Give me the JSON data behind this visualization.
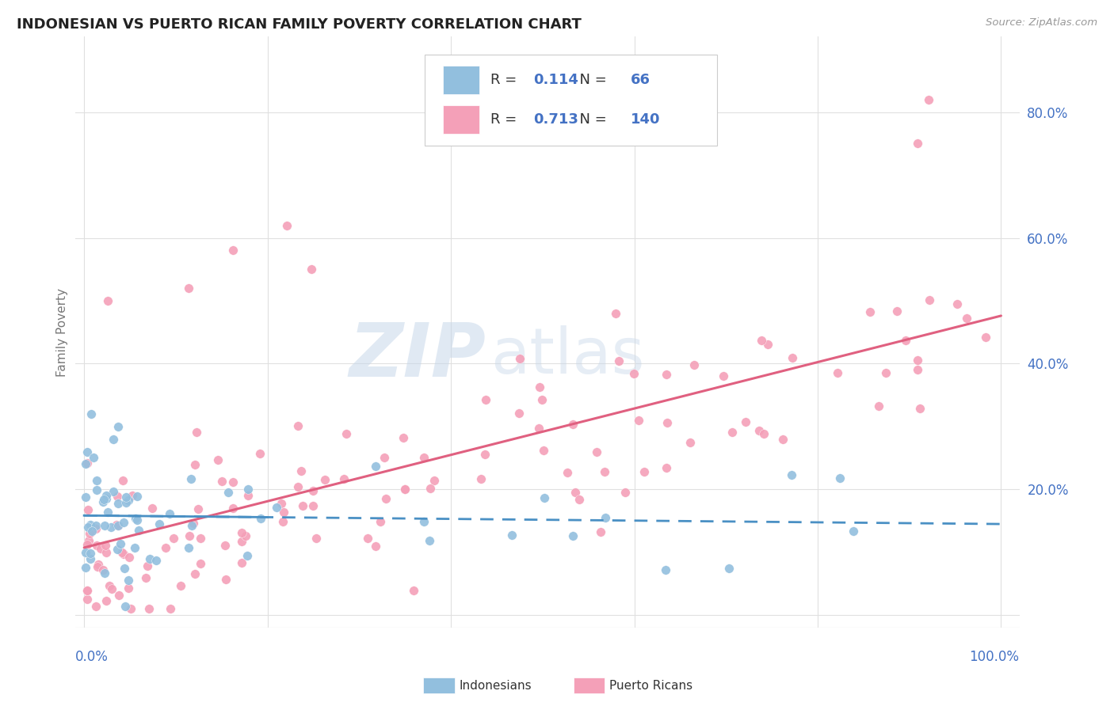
{
  "title": "INDONESIAN VS PUERTO RICAN FAMILY POVERTY CORRELATION CHART",
  "source": "Source: ZipAtlas.com",
  "ylabel": "Family Poverty",
  "indonesian_color": "#92bfde",
  "puerto_rican_color": "#f4a0b8",
  "indonesian_line_color": "#4a90c4",
  "puerto_rican_line_color": "#e06080",
  "background_color": "#ffffff",
  "grid_color": "#e0e0e0",
  "title_color": "#222222",
  "title_fontsize": 13,
  "axis_label_color": "#777777",
  "axis_tick_color": "#4472c4",
  "legend_color": "#4472c4",
  "source_color": "#999999",
  "watermark_zip_color": "#c8d8ea",
  "watermark_atlas_color": "#c8d8ea",
  "legend_entries": [
    {
      "label": "Indonesians",
      "R": 0.114,
      "N": 66
    },
    {
      "label": "Puerto Ricans",
      "R": 0.713,
      "N": 140
    }
  ],
  "xlim": [
    0,
    100
  ],
  "ylim": [
    0,
    90
  ],
  "yticks": [
    0,
    20,
    40,
    60,
    80
  ],
  "ytick_labels": [
    "",
    "20.0%",
    "40.0%",
    "60.0%",
    "80.0%"
  ],
  "xtick_labels_show": [
    "0.0%",
    "100.0%"
  ]
}
